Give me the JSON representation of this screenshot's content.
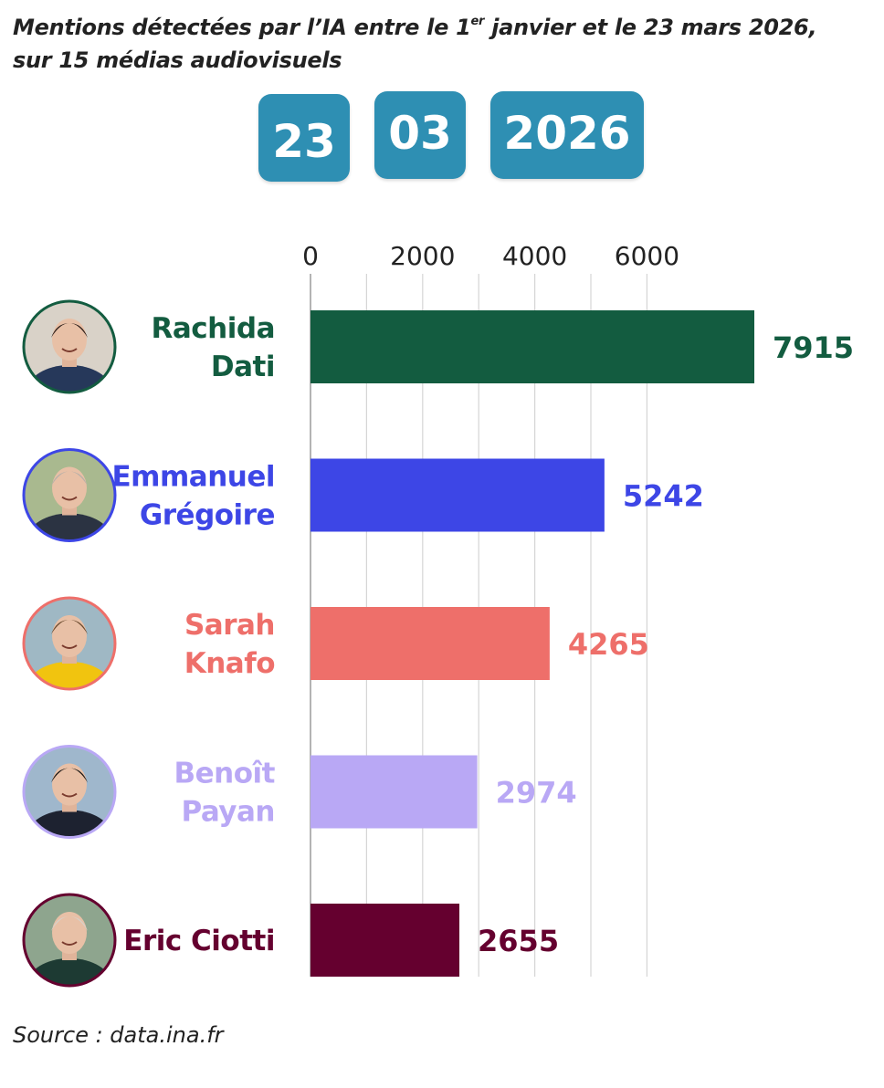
{
  "header": {
    "title_line1_a": "Mentions détectées par l’IA entre le 1",
    "title_line1_sup": "er",
    "title_line1_b": " janvier et le 23 mars 2026,",
    "title_line2": "sur 15 médias audiovisuels"
  },
  "date": {
    "day": "23",
    "month": "03",
    "year": "2026"
  },
  "source": "Source : data.ina.fr",
  "colors": {
    "date_box": "#2e8fb3",
    "grid": "#d5d5d5"
  },
  "chart_data": {
    "type": "bar",
    "orientation": "horizontal",
    "categories": [
      [
        "Rachida",
        "Dati"
      ],
      [
        "Emmanuel",
        "Grégoire"
      ],
      [
        "Sarah",
        "Knafo"
      ],
      [
        "Benoît",
        "Payan"
      ],
      [
        "Eric Ciotti"
      ]
    ],
    "values": [
      7915,
      5242,
      4265,
      2974,
      2655
    ],
    "colors": [
      "#135c40",
      "#3d46e6",
      "#ee6f6a",
      "#b9a8f5",
      "#65002f"
    ],
    "avatars": [
      "avatar-rachida-dati",
      "avatar-emmanuel-gregoire",
      "avatar-sarah-knafo",
      "avatar-benoit-payan",
      "avatar-eric-ciotti"
    ],
    "xticks": [
      0,
      2000,
      4000,
      6000
    ],
    "xlim": [
      0,
      7915
    ],
    "grid": true,
    "axis_position": "top"
  }
}
